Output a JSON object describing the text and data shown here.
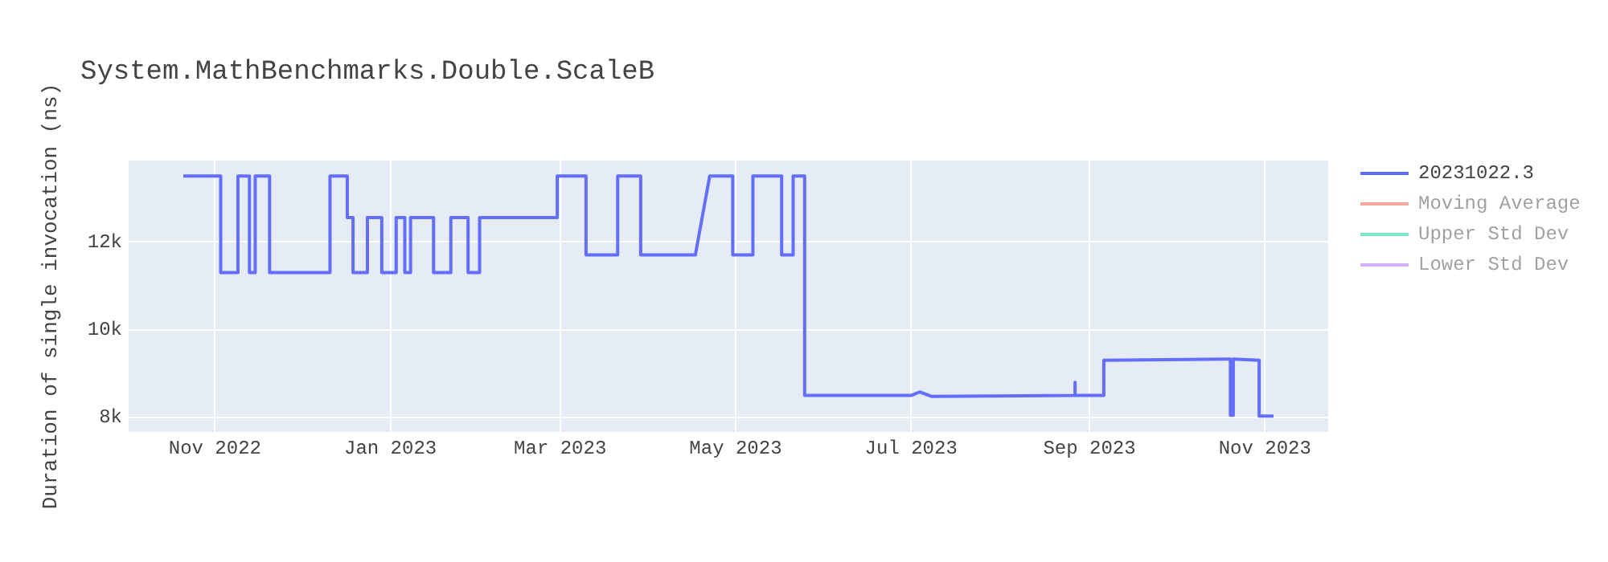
{
  "chart_data": {
    "type": "line",
    "title": "System.MathBenchmarks.Double.ScaleB",
    "ylabel": "Duration of single invocation (ns)",
    "xlim": [
      "2022-10-02",
      "2023-11-23"
    ],
    "xticks": [
      {
        "value": "2022-11-01",
        "label": "Nov 2022"
      },
      {
        "value": "2023-01-01",
        "label": "Jan 2023"
      },
      {
        "value": "2023-03-01",
        "label": "Mar 2023"
      },
      {
        "value": "2023-05-01",
        "label": "May 2023"
      },
      {
        "value": "2023-07-01",
        "label": "Jul 2023"
      },
      {
        "value": "2023-09-01",
        "label": "Sep 2023"
      },
      {
        "value": "2023-11-01",
        "label": "Nov 2023"
      }
    ],
    "ylim": [
      7670,
      13850
    ],
    "yticks": [
      {
        "value": 8000,
        "label": "8k"
      },
      {
        "value": 10000,
        "label": "10k"
      },
      {
        "value": 12000,
        "label": "12k"
      }
    ],
    "grid": true,
    "legend": "right",
    "marker": "none",
    "line_style": "solid",
    "series": [
      {
        "name": "20231022.3",
        "color": "#636efa",
        "x": [
          "2022-10-21",
          "2022-11-03",
          "2022-11-03",
          "2022-11-09",
          "2022-11-09",
          "2022-11-13",
          "2022-11-13",
          "2022-11-15",
          "2022-11-15",
          "2022-11-20",
          "2022-11-20",
          "2022-12-11",
          "2022-12-11",
          "2022-12-17",
          "2022-12-17",
          "2022-12-19",
          "2022-12-19",
          "2022-12-24",
          "2022-12-24",
          "2022-12-29",
          "2022-12-29",
          "2023-01-03",
          "2023-01-03",
          "2023-01-06",
          "2023-01-06",
          "2023-01-08",
          "2023-01-08",
          "2023-01-16",
          "2023-01-16",
          "2023-01-22",
          "2023-01-22",
          "2023-01-28",
          "2023-01-28",
          "2023-02-01",
          "2023-02-01",
          "2023-02-28",
          "2023-02-28",
          "2023-03-10",
          "2023-03-10",
          "2023-03-21",
          "2023-03-21",
          "2023-03-29",
          "2023-03-29",
          "2023-04-17",
          "2023-04-22",
          "2023-04-30",
          "2023-04-30",
          "2023-05-07",
          "2023-05-07",
          "2023-05-17",
          "2023-05-17",
          "2023-05-21",
          "2023-05-21",
          "2023-05-25",
          "2023-05-25",
          "2023-07-01",
          "2023-07-04",
          "2023-07-08",
          "2023-08-27",
          "2023-08-27",
          "2023-08-27",
          "2023-09-06",
          "2023-09-06",
          "2023-10-20",
          "2023-10-20",
          "2023-10-21",
          "2023-10-21",
          "2023-10-30",
          "2023-10-30",
          "2023-11-04"
        ],
        "values": [
          13500,
          13500,
          11300,
          11300,
          13500,
          13500,
          11300,
          11300,
          13500,
          13500,
          11300,
          11300,
          13500,
          13500,
          12550,
          12550,
          11300,
          11300,
          12550,
          12550,
          11300,
          11300,
          12550,
          12550,
          11300,
          11300,
          12550,
          12550,
          11300,
          11300,
          12550,
          12550,
          11300,
          11300,
          12550,
          12550,
          13500,
          13500,
          11700,
          11700,
          13500,
          13500,
          11700,
          11700,
          13500,
          13500,
          11700,
          11700,
          13500,
          13500,
          11700,
          11700,
          13500,
          13500,
          8500,
          8500,
          8580,
          8480,
          8500,
          8800,
          8500,
          8500,
          9300,
          9330,
          8050,
          8050,
          9330,
          9300,
          8030,
          8030
        ]
      },
      {
        "name": "Moving Average",
        "color": "#ef553b"
      },
      {
        "name": "Upper Std Dev",
        "color": "#00cc96"
      },
      {
        "name": "Lower Std Dev",
        "color": "#ab63fa"
      }
    ]
  }
}
